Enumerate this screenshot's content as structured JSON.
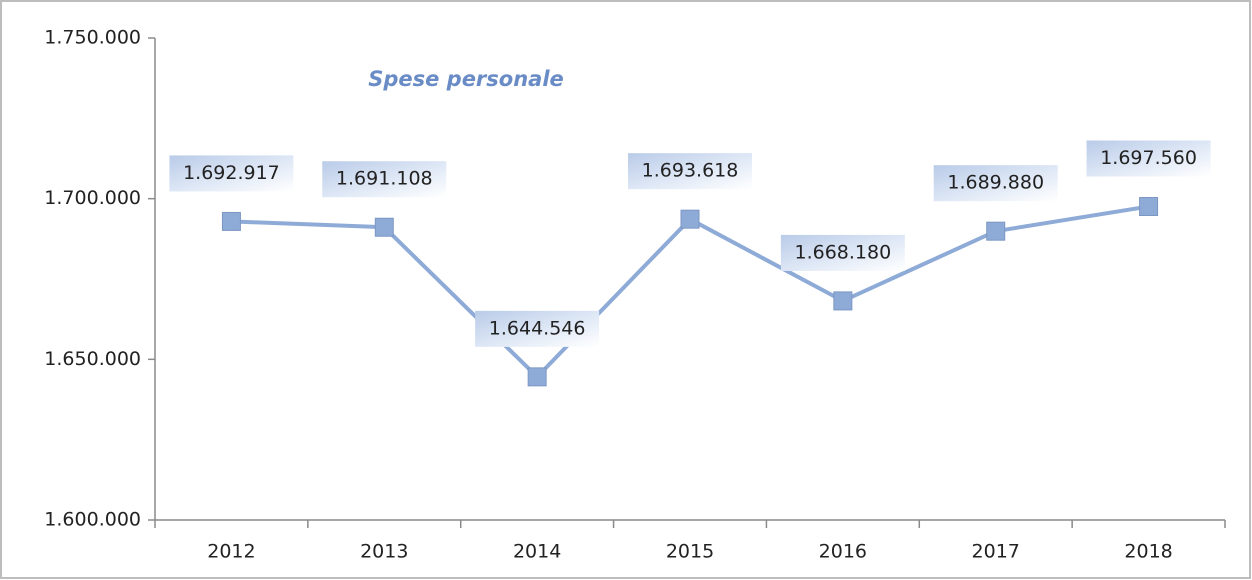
{
  "chart_data": {
    "type": "line",
    "title": "Spese personale",
    "categories": [
      "2012",
      "2013",
      "2014",
      "2015",
      "2016",
      "2017",
      "2018"
    ],
    "series": [
      {
        "name": "Spese personale",
        "color": "#8eaad6",
        "values": [
          1692917,
          1691108,
          1644546,
          1693618,
          1668180,
          1689880,
          1697560
        ],
        "value_labels": [
          "1.692.917",
          "1.691.108",
          "1.644.546",
          "1.693.618",
          "1.668.180",
          "1.689.880",
          "1.697.560"
        ]
      }
    ],
    "ylim": [
      1600000,
      1750000
    ],
    "yticks": [
      {
        "value": 1600000,
        "label": "1.600.000"
      },
      {
        "value": 1650000,
        "label": "1.650.000"
      },
      {
        "value": 1700000,
        "label": "1.700.000"
      },
      {
        "value": 1750000,
        "label": "1.750.000"
      }
    ],
    "grid": false
  }
}
